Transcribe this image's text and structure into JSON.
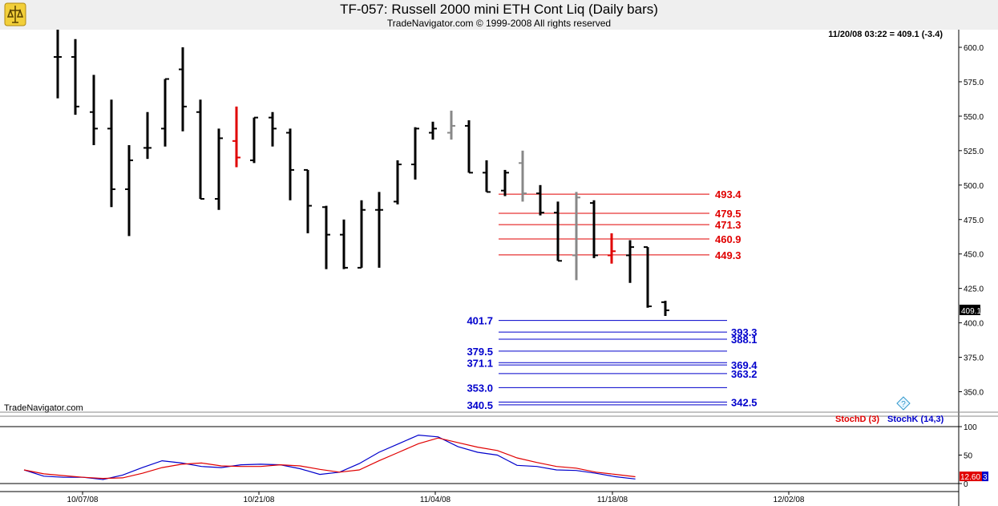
{
  "header": {
    "title": "TF-057:  Russell 2000 mini ETH Cont Liq  (Daily bars)",
    "copyright": "TradeNavigator.com © 1999-2008 All rights reserved"
  },
  "quote_line": "11/20/08 03:22 = 409.1 (-3.4)",
  "watermark": "TradeNavigator.com",
  "help_icon": "?",
  "colors": {
    "up": "#000000",
    "down": "#000000",
    "red_line": "#e00000",
    "blue_line": "#0000cc",
    "stoch_d": "#e00000",
    "stoch_k": "#0000cc"
  },
  "price_axis": {
    "ticks": [
      "600.0",
      "575.0",
      "550.0",
      "525.0",
      "500.0",
      "475.0",
      "450.0",
      "425.0",
      "400.0",
      "375.0",
      "350.0"
    ],
    "last_price_label": "409.1",
    "ylim": [
      338,
      621
    ]
  },
  "x_axis": {
    "labels": [
      "10/07/08",
      "10/21/08",
      "11/04/08",
      "11/18/08",
      "12/02/08"
    ]
  },
  "resistance_levels": [
    "493.4",
    "479.5",
    "471.3",
    "460.9",
    "449.3"
  ],
  "support_levels_left": [
    "401.7",
    "379.5",
    "371.1",
    "353.0",
    "340.5"
  ],
  "support_levels_right": [
    "393.3",
    "388.1",
    "369.4",
    "363.2",
    "342.5"
  ],
  "stoch": {
    "legend_d": "StochD (3)",
    "legend_k": "StochK (14,3)",
    "ticks": [
      "100",
      "50",
      "0"
    ],
    "current_label": "12.60",
    "current_label_tail": "3"
  },
  "chart_data": {
    "type": "ohlc",
    "title": "TF-057:  Russell 2000 mini ETH Cont Liq  (Daily bars)",
    "series": [
      {
        "name": "Russell 2000 mini ETH",
        "bars": [
          {
            "x": "10/02/08",
            "h": 614,
            "l": 563,
            "o": 593,
            "c": 593
          },
          {
            "x": "10/03/08",
            "h": 606,
            "l": 551,
            "o": 593,
            "c": 557
          },
          {
            "x": "10/06/08",
            "h": 580,
            "l": 529,
            "o": 553,
            "c": 541
          },
          {
            "x": "10/07/08",
            "h": 562,
            "l": 484,
            "o": 541,
            "c": 497
          },
          {
            "x": "10/08/08",
            "h": 529,
            "l": 463,
            "o": 497,
            "c": 518
          },
          {
            "x": "10/09/08",
            "h": 553,
            "l": 519,
            "o": 527,
            "c": 527
          },
          {
            "x": "10/10/08",
            "h": 577,
            "l": 528,
            "o": 541,
            "c": 577
          },
          {
            "x": "10/13/08",
            "h": 600,
            "l": 539,
            "o": 584,
            "c": 557
          },
          {
            "x": "10/14/08",
            "h": 562,
            "l": 490,
            "o": 553,
            "c": 490
          },
          {
            "x": "10/15/08",
            "h": 541,
            "l": 482,
            "o": 490,
            "c": 534
          },
          {
            "x": "10/16/08",
            "h": 557,
            "l": 513,
            "o": 532,
            "c": 520
          },
          {
            "x": "10/17/08",
            "h": 549,
            "l": 516,
            "o": 518,
            "c": 549
          },
          {
            "x": "10/20/08",
            "h": 553,
            "l": 528,
            "o": 549,
            "c": 541
          },
          {
            "x": "10/21/08",
            "h": 541,
            "l": 489,
            "o": 538,
            "c": 511
          },
          {
            "x": "10/22/08",
            "h": 511,
            "l": 465,
            "o": 511,
            "c": 485
          },
          {
            "x": "10/23/08",
            "h": 485,
            "l": 439,
            "o": 484,
            "c": 464
          },
          {
            "x": "10/24/08",
            "h": 475,
            "l": 439,
            "o": 464,
            "c": 440
          },
          {
            "x": "10/27/08",
            "h": 489,
            "l": 440,
            "o": 440,
            "c": 482
          },
          {
            "x": "10/28/08",
            "h": 495,
            "l": 440,
            "o": 482,
            "c": 482
          },
          {
            "x": "10/29/08",
            "h": 518,
            "l": 486,
            "o": 488,
            "c": 515
          },
          {
            "x": "10/30/08",
            "h": 542,
            "l": 504,
            "o": 515,
            "c": 541
          },
          {
            "x": "10/31/08",
            "h": 546,
            "l": 533,
            "o": 538,
            "c": 541
          },
          {
            "x": "11/03/08",
            "h": 554,
            "l": 533,
            "o": 538,
            "c": 543
          },
          {
            "x": "11/04/08",
            "h": 547,
            "l": 509,
            "o": 543,
            "c": 509
          },
          {
            "x": "11/05/08",
            "h": 518,
            "l": 495,
            "o": 509,
            "c": 495
          },
          {
            "x": "11/06/08",
            "h": 511,
            "l": 492,
            "o": 496,
            "c": 509
          },
          {
            "x": "11/07/08",
            "h": 525,
            "l": 488,
            "o": 516,
            "c": 494
          },
          {
            "x": "11/10/08",
            "h": 500,
            "l": 478,
            "o": 494,
            "c": 480
          },
          {
            "x": "11/11/08",
            "h": 488,
            "l": 445,
            "o": 480,
            "c": 445
          },
          {
            "x": "11/12/08",
            "h": 495,
            "l": 431,
            "o": 449,
            "c": 491
          },
          {
            "x": "11/13/08",
            "h": 489,
            "l": 447,
            "o": 487,
            "c": 449
          },
          {
            "x": "11/14/08",
            "h": 465,
            "l": 443,
            "o": 449,
            "c": 452
          },
          {
            "x": "11/17/08",
            "h": 460,
            "l": 429,
            "o": 449,
            "c": 455
          },
          {
            "x": "11/18/08",
            "h": 455,
            "l": 411,
            "o": 455,
            "c": 412
          },
          {
            "x": "11/19/08",
            "h": 416,
            "l": 405,
            "o": 415,
            "c": 409.1
          }
        ]
      }
    ],
    "ylim": [
      338,
      621
    ],
    "stochastic": {
      "name_d": "StochD (3)",
      "name_k": "StochK (14,3)",
      "ylim": [
        0,
        100
      ],
      "k": [
        24,
        13,
        11,
        11,
        7,
        15,
        28,
        40,
        36,
        30,
        28,
        33,
        34,
        33,
        26,
        16,
        20,
        35,
        55,
        70,
        85,
        82,
        65,
        55,
        50,
        32,
        30,
        24,
        23,
        18,
        12,
        8
      ],
      "d": [
        24,
        17,
        14,
        11,
        9,
        10,
        18,
        28,
        34,
        36,
        31,
        30,
        30,
        33,
        31,
        25,
        20,
        24,
        40,
        55,
        70,
        80,
        72,
        64,
        58,
        45,
        37,
        30,
        27,
        20,
        16,
        12
      ]
    }
  }
}
